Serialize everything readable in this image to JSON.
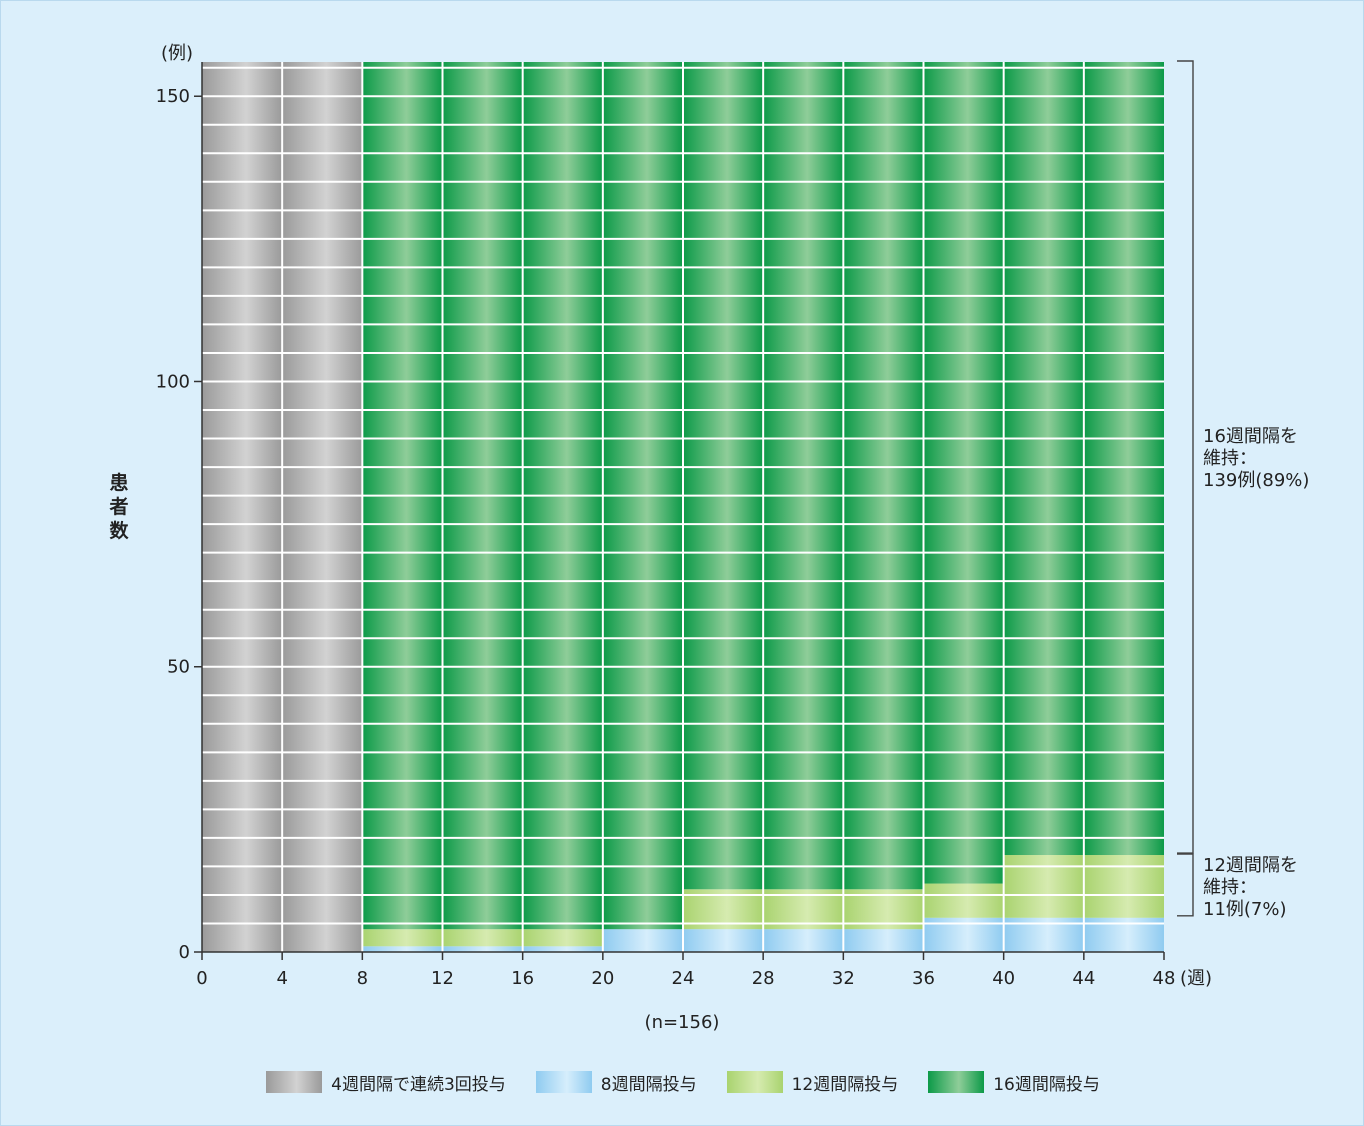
{
  "chart_data": {
    "type": "bar",
    "stacked": true,
    "y_unit": "(例)",
    "x_unit": "(週)",
    "ylabel": "患者数",
    "n_label": "(n=156)",
    "ylim": [
      0,
      156
    ],
    "yticks": [
      0,
      50,
      100,
      150
    ],
    "x_edges": [
      0,
      4,
      8,
      12,
      16,
      20,
      24,
      28,
      32,
      36,
      40,
      44,
      48
    ],
    "x_tick_labels": [
      "0",
      "4",
      "8",
      "12",
      "16",
      "20",
      "24",
      "28",
      "32",
      "36",
      "40",
      "44",
      "48"
    ],
    "y_gridline_step": 5,
    "series": [
      {
        "name": "4週間隔で連続3回投与",
        "color_key": "gray",
        "values": [
          156,
          156,
          0,
          0,
          0,
          0,
          0,
          0,
          0,
          0,
          0,
          0
        ]
      },
      {
        "name": "8週間隔投与",
        "color_key": "blue",
        "values": [
          0,
          0,
          1,
          1,
          1,
          4,
          4,
          4,
          4,
          6,
          6,
          6
        ]
      },
      {
        "name": "12週間隔投与",
        "color_key": "lightgreen",
        "values": [
          0,
          0,
          3,
          3,
          3,
          0,
          7,
          7,
          7,
          6,
          11,
          11
        ]
      },
      {
        "name": "16週間隔投与",
        "color_key": "green",
        "values": [
          0,
          0,
          152,
          152,
          152,
          152,
          145,
          145,
          145,
          144,
          139,
          139
        ]
      }
    ],
    "annotations": [
      {
        "lines": [
          "16週間隔を",
          "維持：",
          "139例(89%)"
        ],
        "range": [
          17,
          156
        ]
      },
      {
        "lines": [
          "12週間隔を",
          "維持：",
          "11例(7%)"
        ],
        "range": [
          6,
          17
        ]
      }
    ]
  },
  "colors": {
    "background": "#dbeffb",
    "gray": [
      "#9a9a9a",
      "#d2d2d2"
    ],
    "blue": [
      "#8fcbf0",
      "#d6eefc"
    ],
    "lightgreen": [
      "#a9d36f",
      "#d6ebb0"
    ],
    "green": [
      "#0c9a48",
      "#8fcd99"
    ]
  }
}
